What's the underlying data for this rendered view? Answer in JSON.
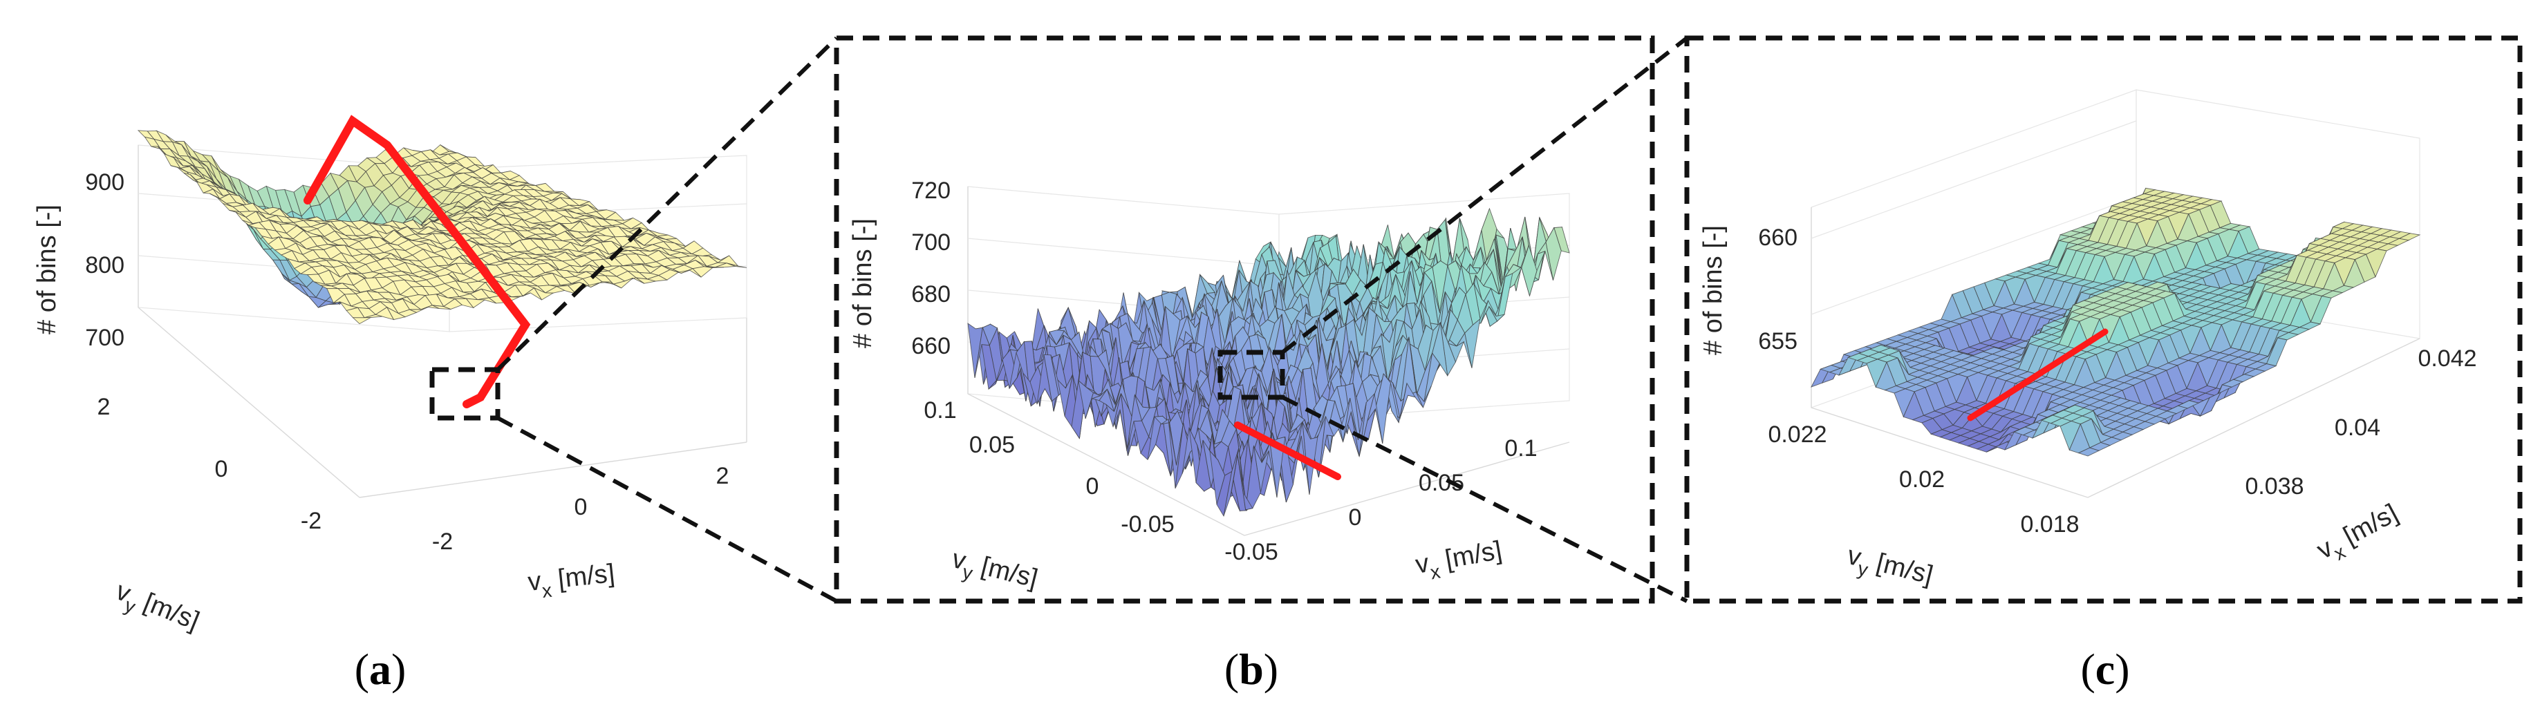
{
  "figure": {
    "captions": [
      "(a)",
      "(b)",
      "(c)"
    ]
  },
  "chart_data": [
    {
      "id": "a",
      "type": "surface",
      "caption": "(a)",
      "zlabel": "# of bins [-]",
      "xlabel": "v_x [m/s]",
      "ylabel": "v_y [m/s]",
      "zticks": [
        "700",
        "800",
        "900"
      ],
      "xticks": [
        "-2",
        "0",
        "2"
      ],
      "yticks": [
        "-2",
        "0",
        "2"
      ],
      "zlim": [
        660,
        980
      ],
      "xlim": [
        -3,
        3
      ],
      "ylim": [
        -3,
        3
      ],
      "surface_description": "funnel shaped minimum near v_x=0, v_y=-2; plateau ~960 elsewhere",
      "minimum_value": 660,
      "red_path": "searched ridge descending into funnel minimum"
    },
    {
      "id": "b",
      "type": "surface",
      "caption": "(b)",
      "zlabel": "# of bins [-]",
      "xlabel": "v_x [m/s]",
      "ylabel": "v_y [m/s]",
      "zticks": [
        "660",
        "680",
        "700",
        "720"
      ],
      "xticks": [
        "-0.05",
        "0",
        "0.05",
        "0.1"
      ],
      "yticks": [
        "-0.05",
        "0",
        "0.05",
        "0.1"
      ],
      "zlim": [
        650,
        725
      ],
      "xlim": [
        -0.08,
        0.14
      ],
      "ylim": [
        -0.08,
        0.12
      ],
      "surface_description": "noisy valley near origin, rising toward the back",
      "red_path": "short path near the minimum"
    },
    {
      "id": "c",
      "type": "surface",
      "caption": "(c)",
      "zlabel": "# of bins [-]",
      "xlabel": "v_x [m/s]",
      "ylabel": "v_y [m/s]",
      "zticks": [
        "655",
        "660"
      ],
      "xticks": [
        "0.038",
        "0.04",
        "0.042"
      ],
      "yticks": [
        "0.018",
        "0.02",
        "0.022"
      ],
      "zlim": [
        651,
        662
      ],
      "xlim": [
        0.037,
        0.043
      ],
      "ylim": [
        0.017,
        0.023
      ],
      "surface_description": "terraced, discretized plateaus with minimum around 651",
      "red_path": "straight line across the minimum terrace"
    }
  ]
}
